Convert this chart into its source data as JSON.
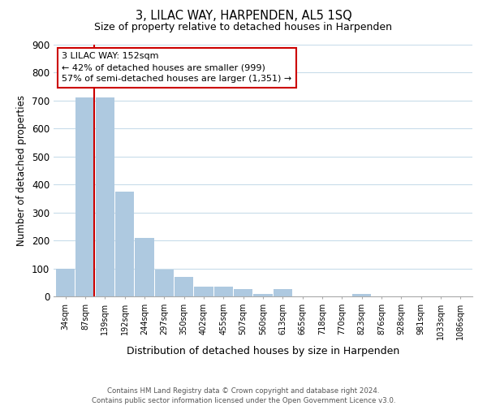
{
  "title": "3, LILAC WAY, HARPENDEN, AL5 1SQ",
  "subtitle": "Size of property relative to detached houses in Harpenden",
  "xlabel": "Distribution of detached houses by size in Harpenden",
  "ylabel": "Number of detached properties",
  "bar_labels": [
    "34sqm",
    "87sqm",
    "139sqm",
    "192sqm",
    "244sqm",
    "297sqm",
    "350sqm",
    "402sqm",
    "455sqm",
    "507sqm",
    "560sqm",
    "613sqm",
    "665sqm",
    "718sqm",
    "770sqm",
    "823sqm",
    "876sqm",
    "928sqm",
    "981sqm",
    "1033sqm",
    "1086sqm"
  ],
  "bar_values": [
    100,
    710,
    710,
    375,
    210,
    95,
    70,
    35,
    35,
    25,
    10,
    25,
    0,
    0,
    0,
    10,
    0,
    0,
    0,
    0,
    0
  ],
  "bar_color": "#aec9e0",
  "reference_line_color": "#cc0000",
  "annotation_line1": "3 LILAC WAY: 152sqm",
  "annotation_line2": "← 42% of detached houses are smaller (999)",
  "annotation_line3": "57% of semi-detached houses are larger (1,351) →",
  "annotation_box_color": "#ffffff",
  "annotation_box_edge": "#cc0000",
  "ylim": [
    0,
    900
  ],
  "yticks": [
    0,
    100,
    200,
    300,
    400,
    500,
    600,
    700,
    800,
    900
  ],
  "bg_color": "#ffffff",
  "grid_color": "#c8dcea",
  "footer_line1": "Contains HM Land Registry data © Crown copyright and database right 2024.",
  "footer_line2": "Contains public sector information licensed under the Open Government Licence v3.0."
}
